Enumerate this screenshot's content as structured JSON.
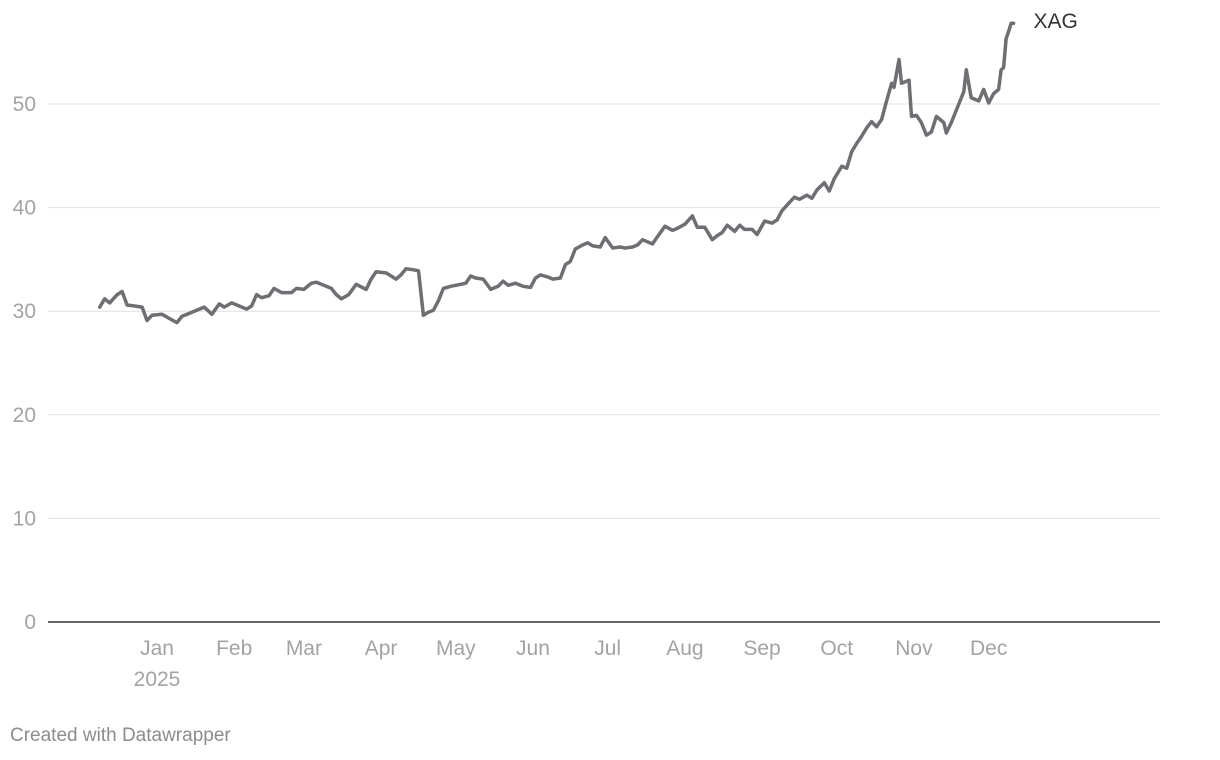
{
  "chart_data": {
    "type": "line",
    "title": "",
    "xlabel": "",
    "ylabel": "",
    "ylim": [
      0,
      60
    ],
    "y_ticks": [
      0,
      10,
      20,
      30,
      40,
      50
    ],
    "x_ticks": [
      {
        "label": "Jan",
        "sublabel": "2025",
        "date": "2025-01-01"
      },
      {
        "label": "Feb",
        "date": "2025-02-01"
      },
      {
        "label": "Mar",
        "date": "2025-03-01"
      },
      {
        "label": "Apr",
        "date": "2025-04-01"
      },
      {
        "label": "May",
        "date": "2025-05-01"
      },
      {
        "label": "Jun",
        "date": "2025-06-01"
      },
      {
        "label": "Jul",
        "date": "2025-07-01"
      },
      {
        "label": "Aug",
        "date": "2025-08-01"
      },
      {
        "label": "Sep",
        "date": "2025-09-01"
      },
      {
        "label": "Oct",
        "date": "2025-10-01"
      },
      {
        "label": "Nov",
        "date": "2025-11-01"
      },
      {
        "label": "Dec",
        "date": "2025-12-01"
      }
    ],
    "grid": true,
    "line_color": "#6e6e73",
    "series": [
      {
        "name": "XAG",
        "points": [
          [
            "2024-12-09",
            30.4
          ],
          [
            "2024-12-11",
            31.2
          ],
          [
            "2024-12-13",
            30.8
          ],
          [
            "2024-12-16",
            31.6
          ],
          [
            "2024-12-18",
            31.9
          ],
          [
            "2024-12-20",
            30.6
          ],
          [
            "2024-12-23",
            30.5
          ],
          [
            "2024-12-26",
            30.4
          ],
          [
            "2024-12-28",
            29.1
          ],
          [
            "2024-12-30",
            29.6
          ],
          [
            "2025-01-03",
            29.7
          ],
          [
            "2025-01-06",
            29.3
          ],
          [
            "2025-01-09",
            28.9
          ],
          [
            "2025-01-11",
            29.5
          ],
          [
            "2025-01-15",
            29.9
          ],
          [
            "2025-01-20",
            30.4
          ],
          [
            "2025-01-23",
            29.7
          ],
          [
            "2025-01-26",
            30.7
          ],
          [
            "2025-01-28",
            30.4
          ],
          [
            "2025-01-31",
            30.8
          ],
          [
            "2025-02-03",
            30.5
          ],
          [
            "2025-02-06",
            30.2
          ],
          [
            "2025-02-08",
            30.5
          ],
          [
            "2025-02-10",
            31.6
          ],
          [
            "2025-02-12",
            31.3
          ],
          [
            "2025-02-15",
            31.5
          ],
          [
            "2025-02-17",
            32.2
          ],
          [
            "2025-02-20",
            31.8
          ],
          [
            "2025-02-24",
            31.8
          ],
          [
            "2025-02-26",
            32.2
          ],
          [
            "2025-03-01",
            32.1
          ],
          [
            "2025-03-04",
            32.7
          ],
          [
            "2025-03-06",
            32.8
          ],
          [
            "2025-03-10",
            32.4
          ],
          [
            "2025-03-12",
            32.2
          ],
          [
            "2025-03-14",
            31.6
          ],
          [
            "2025-03-16",
            31.2
          ],
          [
            "2025-03-19",
            31.6
          ],
          [
            "2025-03-22",
            32.6
          ],
          [
            "2025-03-26",
            32.1
          ],
          [
            "2025-03-28",
            33.1
          ],
          [
            "2025-03-30",
            33.8
          ],
          [
            "2025-04-03",
            33.7
          ],
          [
            "2025-04-05",
            33.4
          ],
          [
            "2025-04-07",
            33.1
          ],
          [
            "2025-04-09",
            33.5
          ],
          [
            "2025-04-11",
            34.1
          ],
          [
            "2025-04-14",
            34.0
          ],
          [
            "2025-04-16",
            33.9
          ],
          [
            "2025-04-18",
            29.6
          ],
          [
            "2025-04-20",
            29.9
          ],
          [
            "2025-04-22",
            30.1
          ],
          [
            "2025-04-24",
            31.0
          ],
          [
            "2025-04-26",
            32.2
          ],
          [
            "2025-04-29",
            32.4
          ],
          [
            "2025-05-03",
            32.6
          ],
          [
            "2025-05-05",
            32.7
          ],
          [
            "2025-05-07",
            33.4
          ],
          [
            "2025-05-09",
            33.2
          ],
          [
            "2025-05-12",
            33.1
          ],
          [
            "2025-05-15",
            32.1
          ],
          [
            "2025-05-18",
            32.4
          ],
          [
            "2025-05-20",
            32.9
          ],
          [
            "2025-05-22",
            32.5
          ],
          [
            "2025-05-25",
            32.7
          ],
          [
            "2025-05-28",
            32.4
          ],
          [
            "2025-05-31",
            32.3
          ],
          [
            "2025-06-02",
            33.2
          ],
          [
            "2025-06-04",
            33.5
          ],
          [
            "2025-06-07",
            33.3
          ],
          [
            "2025-06-09",
            33.1
          ],
          [
            "2025-06-12",
            33.2
          ],
          [
            "2025-06-14",
            34.5
          ],
          [
            "2025-06-16",
            34.8
          ],
          [
            "2025-06-18",
            36.0
          ],
          [
            "2025-06-21",
            36.4
          ],
          [
            "2025-06-23",
            36.6
          ],
          [
            "2025-06-25",
            36.3
          ],
          [
            "2025-06-28",
            36.2
          ],
          [
            "2025-06-30",
            37.1
          ],
          [
            "2025-07-03",
            36.1
          ],
          [
            "2025-07-06",
            36.2
          ],
          [
            "2025-07-08",
            36.1
          ],
          [
            "2025-07-11",
            36.2
          ],
          [
            "2025-07-13",
            36.4
          ],
          [
            "2025-07-15",
            36.9
          ],
          [
            "2025-07-17",
            36.7
          ],
          [
            "2025-07-19",
            36.5
          ],
          [
            "2025-07-21",
            37.2
          ],
          [
            "2025-07-24",
            38.2
          ],
          [
            "2025-07-27",
            37.8
          ],
          [
            "2025-07-29",
            38.0
          ],
          [
            "2025-08-01",
            38.4
          ],
          [
            "2025-08-04",
            39.2
          ],
          [
            "2025-08-06",
            38.1
          ],
          [
            "2025-08-09",
            38.1
          ],
          [
            "2025-08-12",
            36.9
          ],
          [
            "2025-08-14",
            37.3
          ],
          [
            "2025-08-16",
            37.6
          ],
          [
            "2025-08-18",
            38.3
          ],
          [
            "2025-08-21",
            37.7
          ],
          [
            "2025-08-23",
            38.3
          ],
          [
            "2025-08-25",
            37.9
          ],
          [
            "2025-08-28",
            37.9
          ],
          [
            "2025-08-30",
            37.4
          ],
          [
            "2025-09-02",
            38.7
          ],
          [
            "2025-09-05",
            38.5
          ],
          [
            "2025-09-07",
            38.8
          ],
          [
            "2025-09-09",
            39.7
          ],
          [
            "2025-09-12",
            40.5
          ],
          [
            "2025-09-14",
            41.0
          ],
          [
            "2025-09-16",
            40.8
          ],
          [
            "2025-09-19",
            41.2
          ],
          [
            "2025-09-21",
            40.9
          ],
          [
            "2025-09-23",
            41.7
          ],
          [
            "2025-09-26",
            42.4
          ],
          [
            "2025-09-28",
            41.6
          ],
          [
            "2025-09-30",
            42.8
          ],
          [
            "2025-10-03",
            44.0
          ],
          [
            "2025-10-05",
            43.8
          ],
          [
            "2025-10-07",
            45.4
          ],
          [
            "2025-10-09",
            46.2
          ],
          [
            "2025-10-11",
            46.9
          ],
          [
            "2025-10-13",
            47.7
          ],
          [
            "2025-10-15",
            48.3
          ],
          [
            "2025-10-17",
            47.8
          ],
          [
            "2025-10-19",
            48.5
          ],
          [
            "2025-10-21",
            50.3
          ],
          [
            "2025-10-23",
            52.0
          ],
          [
            "2025-10-24",
            51.6
          ],
          [
            "2025-10-26",
            54.3
          ],
          [
            "2025-10-27",
            52.0
          ],
          [
            "2025-10-30",
            52.3
          ],
          [
            "2025-10-31",
            48.8
          ],
          [
            "2025-11-02",
            48.9
          ],
          [
            "2025-11-04",
            48.2
          ],
          [
            "2025-11-06",
            47.0
          ],
          [
            "2025-11-08",
            47.3
          ],
          [
            "2025-11-10",
            48.8
          ],
          [
            "2025-11-13",
            48.2
          ],
          [
            "2025-11-14",
            47.2
          ],
          [
            "2025-11-16",
            48.2
          ],
          [
            "2025-11-19",
            50.0
          ],
          [
            "2025-11-21",
            51.2
          ],
          [
            "2025-11-22",
            53.3
          ],
          [
            "2025-11-24",
            50.6
          ],
          [
            "2025-11-27",
            50.3
          ],
          [
            "2025-11-29",
            51.4
          ],
          [
            "2025-12-01",
            50.1
          ],
          [
            "2025-12-03",
            51.0
          ],
          [
            "2025-12-05",
            51.4
          ],
          [
            "2025-12-06",
            53.3
          ],
          [
            "2025-12-07",
            53.5
          ],
          [
            "2025-12-08",
            56.3
          ],
          [
            "2025-12-09",
            57.0
          ],
          [
            "2025-12-10",
            57.8
          ],
          [
            "2025-12-11",
            57.8
          ]
        ]
      }
    ]
  },
  "credit": "Created with Datawrapper"
}
